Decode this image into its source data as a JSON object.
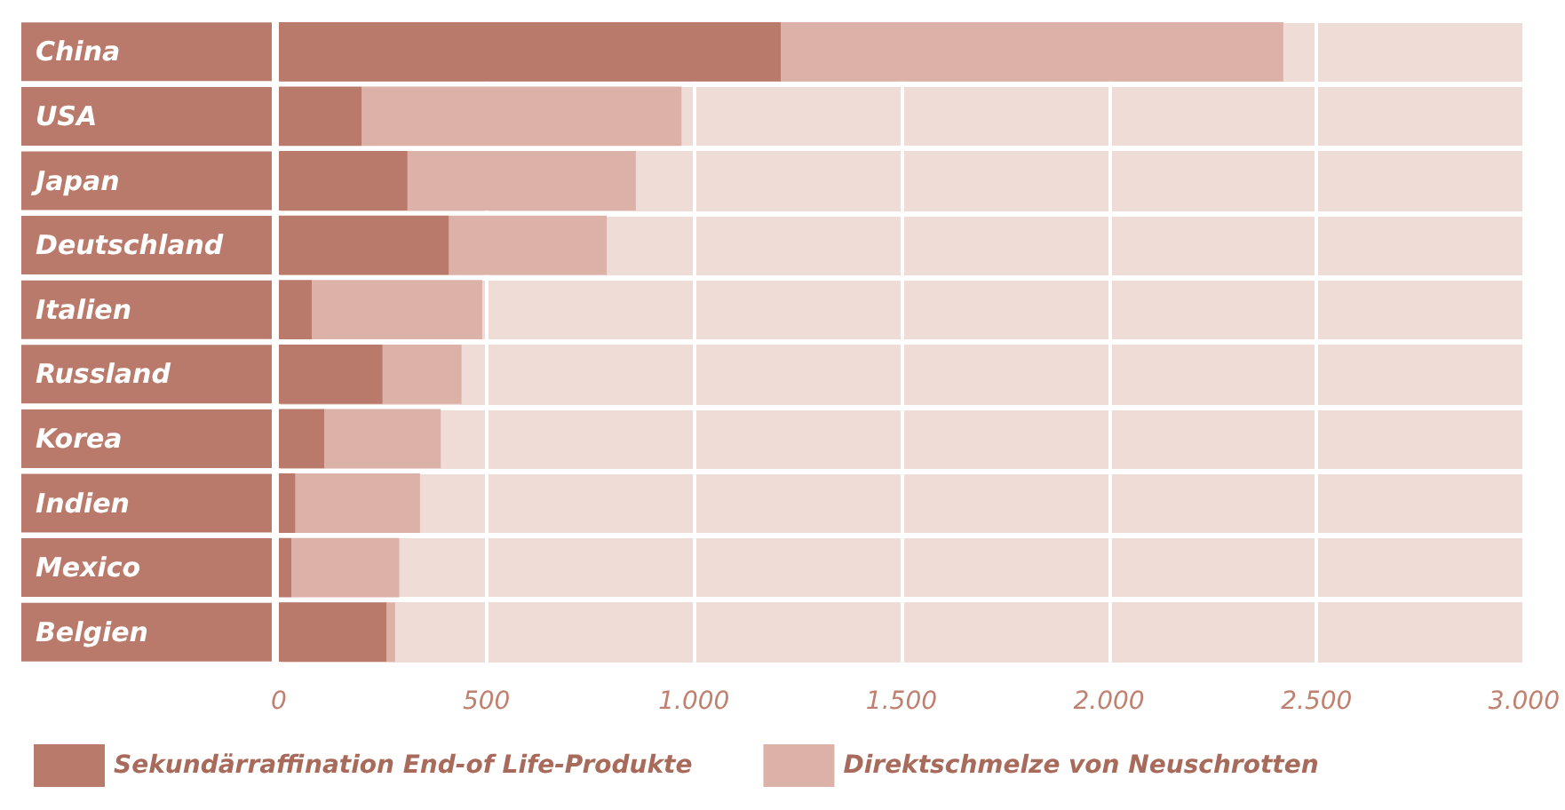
{
  "chart_data": {
    "type": "bar",
    "orientation": "horizontal",
    "stacked": true,
    "categories": [
      "China",
      "USA",
      "Japan",
      "Deutschland",
      "Italien",
      "Russland",
      "Korea",
      "Indien",
      "Mexico",
      "Belgien"
    ],
    "series": [
      {
        "name": "Sekundärraffination End-of Life-Produkte",
        "color": "#b97a6b",
        "values": [
          1210,
          200,
          310,
          410,
          80,
          250,
          110,
          40,
          30,
          260
        ]
      },
      {
        "name": "Direktschmelze von Neuschrotten",
        "color": "#dcb2a8",
        "values": [
          1210,
          770,
          550,
          380,
          410,
          190,
          280,
          300,
          260,
          20
        ]
      }
    ],
    "xlim": [
      0,
      3000
    ],
    "xticks": [
      {
        "value": 0,
        "label": "0"
      },
      {
        "value": 500,
        "label": "500"
      },
      {
        "value": 1000,
        "label": "1.000"
      },
      {
        "value": 1500,
        "label": "1.500"
      },
      {
        "value": 2000,
        "label": "2.000"
      },
      {
        "value": 2500,
        "label": "2.500"
      },
      {
        "value": 3000,
        "label": "3.000"
      }
    ],
    "grid": "x",
    "legend": "bottom"
  }
}
